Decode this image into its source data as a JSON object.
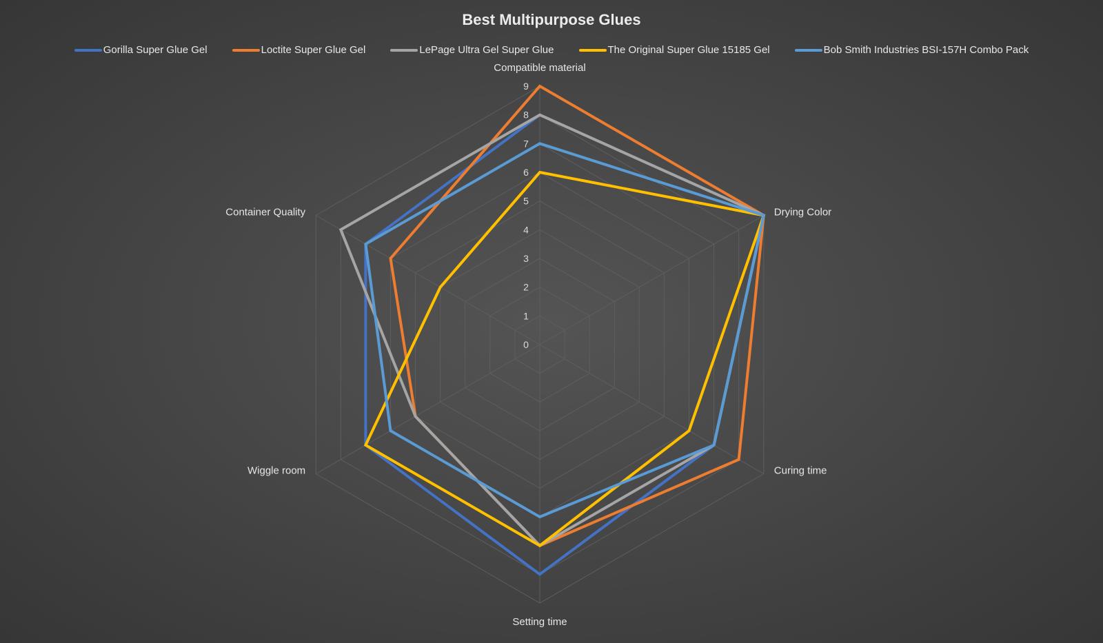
{
  "chart_data": {
    "type": "radar",
    "title": "Best Multipurpose Glues",
    "axes": [
      "Compatible material",
      "Drying Color",
      "Curing time",
      "Setting time",
      "Wiggle room",
      "Container Quality"
    ],
    "r_ticks": [
      "0",
      "1",
      "2",
      "3",
      "4",
      "5",
      "6",
      "7",
      "8",
      "9"
    ],
    "rlim": [
      0,
      9
    ],
    "grid": true,
    "legend_position": "top",
    "series": [
      {
        "name": "Gorilla Super Glue Gel",
        "color": "#4472c4",
        "values": [
          8,
          9,
          7,
          8,
          7,
          7
        ]
      },
      {
        "name": "Loctite Super Glue Gel",
        "color": "#ed7d31",
        "values": [
          9,
          9,
          8,
          7,
          5,
          6
        ]
      },
      {
        "name": "LePage Ultra Gel Super Glue",
        "color": "#a5a5a5",
        "values": [
          8,
          9,
          7,
          7,
          5,
          8
        ]
      },
      {
        "name": "The Original Super Glue 15185 Gel",
        "color": "#ffc000",
        "values": [
          6,
          9,
          6,
          7,
          7,
          4
        ]
      },
      {
        "name": "Bob Smith Industries BSI-157H Combo Pack",
        "color": "#5b9bd5",
        "values": [
          7,
          9,
          7,
          6,
          6,
          7
        ]
      }
    ]
  }
}
